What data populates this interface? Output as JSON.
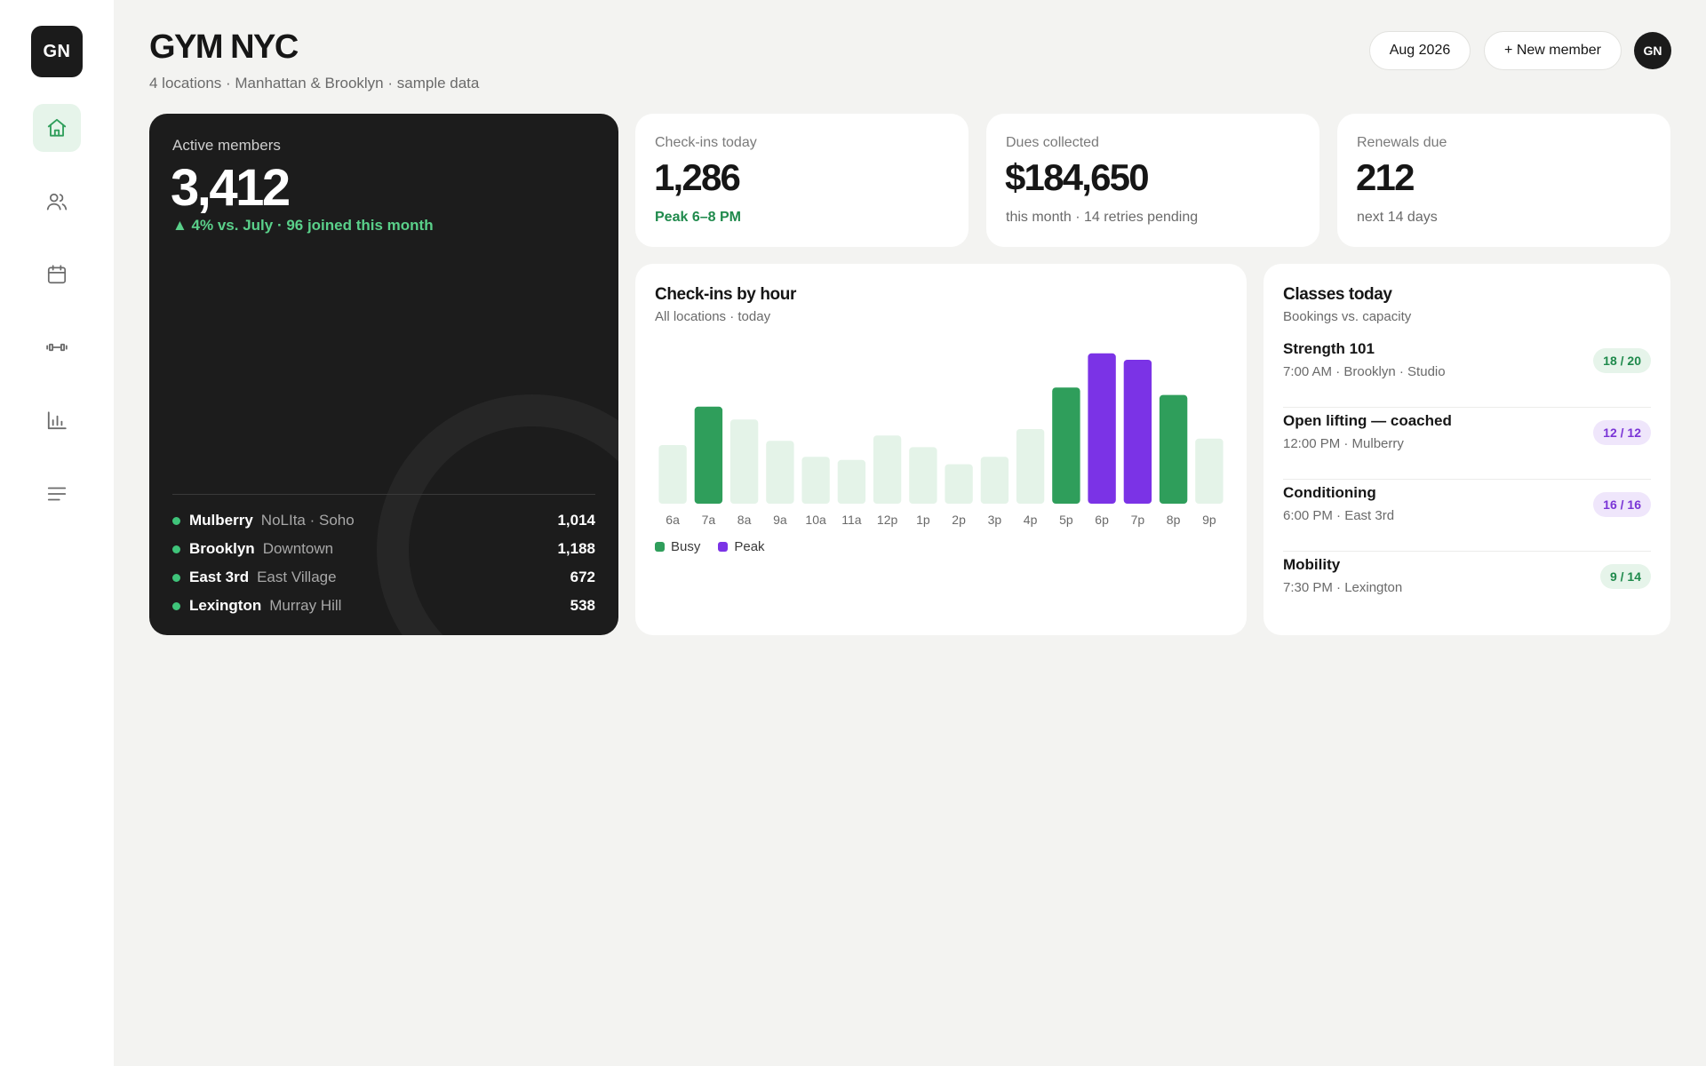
{
  "brand": {
    "logo": "GN",
    "avatar": "GN"
  },
  "sidebar": {
    "items": [
      {
        "icon": "home-icon",
        "active": true
      },
      {
        "icon": "members-icon",
        "active": false
      },
      {
        "icon": "calendar-icon",
        "active": false
      },
      {
        "icon": "dumbbell-icon",
        "active": false
      },
      {
        "icon": "bar-chart-icon",
        "active": false
      },
      {
        "icon": "menu-lines-icon",
        "active": false
      }
    ]
  },
  "header": {
    "title": "GYM NYC",
    "subtitle": "4 locations · Manhattan & Brooklyn · sample data",
    "month": "Aug 2026",
    "new_member": "+ New member"
  },
  "members": {
    "label": "Active members",
    "value": "3,412",
    "delta": "▲ 4% vs. July · 96 joined this month",
    "locations": [
      {
        "name": "Mulberry",
        "area": "NoLIta · Soho",
        "count": "1,014"
      },
      {
        "name": "Brooklyn",
        "area": "Downtown",
        "count": "1,188"
      },
      {
        "name": "East 3rd",
        "area": "East Village",
        "count": "672"
      },
      {
        "name": "Lexington",
        "area": "Murray Hill",
        "count": "538"
      }
    ]
  },
  "stats": {
    "checkins": {
      "label": "Check-ins today",
      "value": "1,286",
      "note": "Peak 6–8 PM"
    },
    "dues": {
      "label": "Dues collected",
      "value": "$184,650",
      "note": "this month · 14 retries pending"
    },
    "renewals": {
      "label": "Renewals due",
      "value": "212",
      "note": "next 14 days"
    }
  },
  "hourly": {
    "title": "Check-ins by hour",
    "subtitle": "All locations · today",
    "legend": {
      "busy": "Busy",
      "peak": "Peak"
    },
    "colors": {
      "normal": "#e4f3e8",
      "busy": "#2f9e5b",
      "peak": "#7b33e6"
    }
  },
  "chart_data": {
    "type": "bar",
    "categories": [
      "6a",
      "7a",
      "8a",
      "9a",
      "10a",
      "11a",
      "12p",
      "1p",
      "2p",
      "3p",
      "4p",
      "5p",
      "6p",
      "7p",
      "8p",
      "9p"
    ],
    "values": [
      55,
      91,
      79,
      59,
      44,
      41,
      64,
      53,
      37,
      44,
      70,
      109,
      141,
      135,
      102,
      61
    ],
    "levels": [
      "normal",
      "busy",
      "normal",
      "normal",
      "normal",
      "normal",
      "normal",
      "normal",
      "normal",
      "normal",
      "normal",
      "busy",
      "peak",
      "peak",
      "busy",
      "normal"
    ],
    "legend": [
      "Busy",
      "Peak"
    ],
    "ylim": [
      0,
      150
    ]
  },
  "classes": {
    "title": "Classes today",
    "subtitle": "Bookings vs. capacity",
    "items": [
      {
        "name": "Strength 101",
        "meta": "7:00 AM · Brooklyn · Studio",
        "badge": "18 / 20",
        "tone": "green"
      },
      {
        "name": "Open lifting — coached",
        "meta": "12:00 PM · Mulberry",
        "badge": "12 / 12",
        "tone": "purple"
      },
      {
        "name": "Conditioning",
        "meta": "6:00 PM · East 3rd",
        "badge": "16 / 16",
        "tone": "purple"
      },
      {
        "name": "Mobility",
        "meta": "7:30 PM · Lexington",
        "badge": "9 / 14",
        "tone": "green"
      }
    ]
  }
}
